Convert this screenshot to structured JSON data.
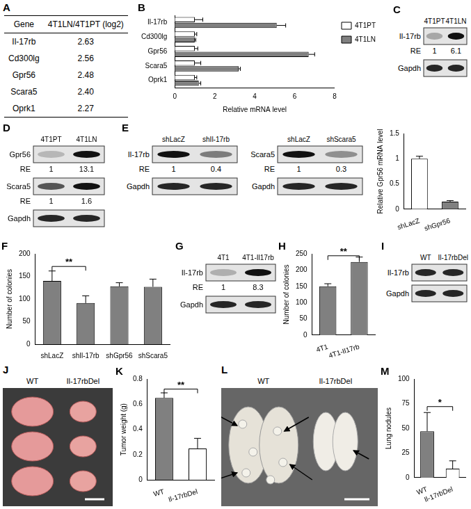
{
  "table": {
    "panel": "A",
    "header": [
      "Gene",
      "4T1LN/4T1PT (log2)"
    ],
    "rows": [
      [
        "Il-17rb",
        "2.63"
      ],
      [
        "Cd300lg",
        "2.56"
      ],
      [
        "Gpr56",
        "2.48"
      ],
      [
        "Scara5",
        "2.40"
      ],
      [
        "Oprk1",
        "2.27"
      ]
    ]
  },
  "chart_data": [
    {
      "panel": "B",
      "type": "bar",
      "orientation": "horizontal",
      "categories": [
        "Il-17rb",
        "Cd300lg",
        "Gpr56",
        "Scara5",
        "Oprk1"
      ],
      "series": [
        {
          "name": "4T1PT",
          "color": "#ffffff",
          "values": [
            1,
            1,
            1,
            1,
            1
          ],
          "errors": [
            0.4,
            0.1,
            0.15,
            0.3,
            0.1
          ]
        },
        {
          "name": "4T1LN",
          "color": "#808080",
          "values": [
            5.1,
            1.0,
            6.7,
            3.2,
            1.2
          ],
          "errors": [
            0.45,
            0.05,
            0.3,
            0.08,
            0.1
          ]
        }
      ],
      "x_label": "Relative mRNA level",
      "xlim": [
        0,
        8
      ],
      "xticks": [
        0,
        2,
        4,
        6,
        8
      ],
      "legend": "upper right",
      "grid": false
    },
    {
      "type": "bar",
      "categories": [
        "shLacZ",
        "shGpr56"
      ],
      "values": [
        1.0,
        0.15
      ],
      "errors": [
        0.05,
        0.02
      ],
      "colors": [
        "#ffffff",
        "#808080"
      ],
      "y_label": "Relative Gpr56 mRNA level",
      "ylim": [
        0,
        1.5
      ],
      "yticks": [
        0,
        0.5,
        1,
        1.5
      ],
      "grid": false
    },
    {
      "panel": "F",
      "type": "bar",
      "categories": [
        "shLacZ",
        "shIl-17rb",
        "shGpr56",
        "shScara5"
      ],
      "values": [
        140,
        91,
        128,
        127
      ],
      "errors": [
        22,
        16,
        8,
        17
      ],
      "color": "#808080",
      "y_label": "Number of colonies",
      "ylim": [
        0,
        200
      ],
      "yticks": [
        0,
        50,
        100,
        150,
        200
      ],
      "annotations": [
        {
          "text": "**",
          "from": 0,
          "to": 1,
          "y": 172
        }
      ],
      "grid": false
    },
    {
      "panel": "H",
      "type": "bar",
      "categories": [
        "4T1",
        "4T1-Il17rb"
      ],
      "values": [
        150,
        225
      ],
      "errors": [
        8,
        15
      ],
      "color": "#808080",
      "y_label": "Number of colonies",
      "ylim": [
        0,
        250
      ],
      "yticks": [
        0,
        50,
        100,
        150,
        200,
        250
      ],
      "annotations": [
        {
          "text": "**",
          "from": 0,
          "to": 1,
          "y": 244
        }
      ],
      "grid": false
    },
    {
      "panel": "K",
      "type": "bar",
      "categories": [
        "WT",
        "Il-17rbDel"
      ],
      "values": [
        0.65,
        0.25
      ],
      "errors": [
        0.04,
        0.08
      ],
      "colors": [
        "#808080",
        "#ffffff"
      ],
      "y_label": "Tumor weight (g)",
      "ylim": [
        0,
        0.8
      ],
      "yticks": [
        0,
        0.2,
        0.4,
        0.6,
        0.8
      ],
      "annotations": [
        {
          "text": "**",
          "from": 0,
          "to": 1,
          "y": 0.72
        }
      ],
      "grid": false
    },
    {
      "panel": "M",
      "type": "bar",
      "categories": [
        "WT",
        "Il-17rbDel"
      ],
      "values": [
        47,
        9
      ],
      "errors": [
        19,
        8
      ],
      "colors": [
        "#808080",
        "#ffffff"
      ],
      "y_label": "Lung nodules",
      "ylim": [
        0,
        100
      ],
      "yticks": [
        0,
        25,
        50,
        75,
        100
      ],
      "annotations": [
        {
          "text": "*",
          "from": 0,
          "to": 1,
          "y": 72
        }
      ],
      "grid": false
    }
  ],
  "blots": {
    "re_label": "RE",
    "items": [
      {
        "panel": "C",
        "lanes": [
          "4T1PT",
          "4T1LN"
        ],
        "rows": [
          {
            "label": "Il-17rb",
            "re": [
              1,
              6.1
            ]
          },
          {
            "label": "Gapdh"
          }
        ]
      },
      {
        "panel": "D",
        "lanes": [
          "4T1PT",
          "4T1LN"
        ],
        "rows": [
          {
            "label": "Gpr56",
            "re": [
              1,
              13.1
            ]
          },
          {
            "label": "Scara5",
            "re": [
              1,
              1.6
            ]
          },
          {
            "label": "Gapdh"
          }
        ]
      },
      {
        "panel": "E",
        "lanes": [
          "shLacZ",
          "shIl-17rb"
        ],
        "rows": [
          {
            "label": "Il-17rb",
            "re": [
              1,
              0.4
            ]
          },
          {
            "label": "Gapdh"
          }
        ]
      },
      {
        "lanes": [
          "shLacZ",
          "shScara5"
        ],
        "rows": [
          {
            "label": "Scara5",
            "re": [
              1,
              0.3
            ]
          },
          {
            "label": "Gapdh"
          }
        ]
      },
      {
        "panel": "G",
        "lanes": [
          "4T1",
          "4T1-Il17rb"
        ],
        "rows": [
          {
            "label": "Il-17rb",
            "re": [
              1,
              8.3
            ]
          },
          {
            "label": "Gapdh"
          }
        ]
      },
      {
        "panel": "I",
        "lanes": [
          "WT",
          "Il-17rbDel"
        ],
        "rows": [
          {
            "label": "Il-17rb"
          },
          {
            "label": "Gapdh"
          }
        ]
      }
    ]
  },
  "photos": [
    {
      "panel": "J",
      "kind": "tumors",
      "groups": [
        "WT",
        "Il-17rbDel"
      ]
    },
    {
      "panel": "L",
      "kind": "lungs",
      "groups": [
        "WT",
        "Il-17rbDel"
      ]
    }
  ]
}
